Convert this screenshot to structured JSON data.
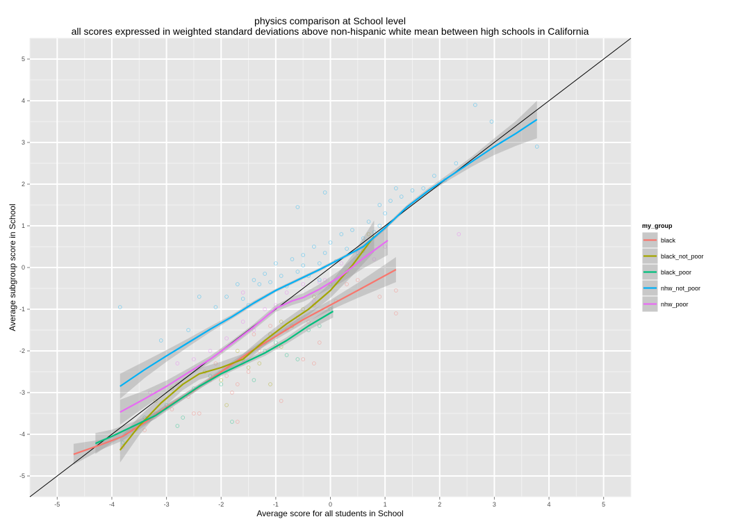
{
  "chart_data": {
    "type": "scatter",
    "title": "physics comparison at School level",
    "subtitle": "all scores expressed in weighted standard deviations above non-hispanic white mean between high schools in California",
    "xlabel": "Average score for all students in School",
    "ylabel": "Average subgroup score in School",
    "xlim": [
      -5.5,
      5.5
    ],
    "ylim": [
      -5.5,
      5.5
    ],
    "x_ticks": [
      -5,
      -4,
      -3,
      -2,
      -1,
      0,
      1,
      2,
      3,
      4,
      5
    ],
    "y_ticks": [
      -5,
      -4,
      -3,
      -2,
      -1,
      0,
      1,
      2,
      3,
      4,
      5
    ],
    "grid": true,
    "reference_line": "y = x",
    "legend": {
      "title": "my_group",
      "position": "right",
      "entries": [
        "black",
        "black_not_poor",
        "black_poor",
        "nhw_not_poor",
        "nhw_poor"
      ]
    },
    "series": [
      {
        "name": "black",
        "color": "#F8766D",
        "fit": {
          "x": [
            -4.7,
            -4.2,
            -3.8,
            -3.4,
            -3.0,
            -2.5,
            -2.0,
            -1.5,
            -1.0,
            -0.5,
            0.0,
            0.5,
            1.2
          ],
          "y": [
            -4.48,
            -4.25,
            -4.05,
            -3.72,
            -3.35,
            -2.95,
            -2.5,
            -2.05,
            -1.65,
            -1.25,
            -0.9,
            -0.55,
            -0.05
          ]
        },
        "band": [
          0.25,
          0.12,
          0.1,
          0.08,
          0.07,
          0.06,
          0.06,
          0.07,
          0.08,
          0.1,
          0.12,
          0.18,
          0.3
        ],
        "points": [
          [
            -3.4,
            -3.9
          ],
          [
            -3.2,
            -3.5
          ],
          [
            -2.9,
            -3.4
          ],
          [
            -2.6,
            -3.1
          ],
          [
            -2.4,
            -3.5
          ],
          [
            -2.2,
            -2.7
          ],
          [
            -2.1,
            -2.3
          ],
          [
            -1.9,
            -2.6
          ],
          [
            -1.8,
            -3.0
          ],
          [
            -1.6,
            -2.3
          ],
          [
            -1.5,
            -2.5
          ],
          [
            -1.4,
            -1.6
          ],
          [
            -1.3,
            -2.0
          ],
          [
            -1.2,
            -1.8
          ],
          [
            -1.1,
            -1.4
          ],
          [
            -1.0,
            -1.9
          ],
          [
            -0.9,
            -3.2
          ],
          [
            -0.8,
            -1.5
          ],
          [
            -0.6,
            -1.2
          ],
          [
            -0.5,
            -2.2
          ],
          [
            -0.4,
            -1.3
          ],
          [
            -0.3,
            -0.9
          ],
          [
            -0.2,
            -1.8
          ],
          [
            0.1,
            -0.8
          ],
          [
            0.3,
            -0.4
          ],
          [
            0.5,
            -0.3
          ],
          [
            0.9,
            -0.7
          ],
          [
            1.2,
            -0.55
          ],
          [
            1.2,
            -1.1
          ],
          [
            -2.8,
            -2.8
          ],
          [
            -2.0,
            -2.0
          ],
          [
            -1.7,
            -2.8
          ],
          [
            -1.7,
            -3.7
          ],
          [
            -0.3,
            -2.3
          ],
          [
            -2.5,
            -3.5
          ],
          [
            -3.8,
            -4.3
          ]
        ]
      },
      {
        "name": "black_not_poor",
        "color": "#A3A500",
        "fit": {
          "x": [
            -3.85,
            -3.5,
            -3.1,
            -2.7,
            -2.4,
            -2.0,
            -1.6,
            -1.2,
            -0.8,
            -0.4,
            0.0,
            0.4,
            0.8
          ],
          "y": [
            -4.38,
            -3.8,
            -3.25,
            -2.8,
            -2.55,
            -2.4,
            -2.2,
            -1.75,
            -1.35,
            -1.0,
            -0.55,
            0.05,
            0.75
          ]
        },
        "band": [
          0.3,
          0.22,
          0.16,
          0.14,
          0.14,
          0.14,
          0.13,
          0.12,
          0.12,
          0.14,
          0.18,
          0.25,
          0.38
        ],
        "points": [
          [
            -3.6,
            -3.9
          ],
          [
            -3.2,
            -3.2
          ],
          [
            -2.9,
            -2.9
          ],
          [
            -2.3,
            -2.5
          ],
          [
            -2.0,
            -2.7
          ],
          [
            -1.7,
            -2.0
          ],
          [
            -1.5,
            -2.4
          ],
          [
            -1.3,
            -2.3
          ],
          [
            -1.1,
            -1.6
          ],
          [
            -0.9,
            -1.3
          ],
          [
            -0.7,
            -1.4
          ],
          [
            -0.5,
            -1.0
          ],
          [
            -0.3,
            -0.7
          ],
          [
            0.0,
            -0.4
          ],
          [
            0.3,
            -0.1
          ],
          [
            0.6,
            0.4
          ],
          [
            0.7,
            0.8
          ],
          [
            -1.9,
            -3.3
          ],
          [
            -1.1,
            -2.8
          ],
          [
            -0.9,
            -1.9
          ]
        ]
      },
      {
        "name": "black_poor",
        "color": "#00BF7D",
        "fit": {
          "x": [
            -4.3,
            -4.0,
            -3.6,
            -3.2,
            -2.8,
            -2.4,
            -2.0,
            -1.6,
            -1.2,
            -0.8,
            -0.4,
            0.05
          ],
          "y": [
            -4.22,
            -4.05,
            -3.8,
            -3.55,
            -3.2,
            -2.85,
            -2.55,
            -2.3,
            -2.05,
            -1.75,
            -1.4,
            -1.05
          ]
        },
        "band": [
          0.25,
          0.16,
          0.1,
          0.08,
          0.07,
          0.06,
          0.06,
          0.06,
          0.07,
          0.08,
          0.1,
          0.15
        ],
        "points": [
          [
            -3.8,
            -4.2
          ],
          [
            -3.4,
            -3.6
          ],
          [
            -3.0,
            -3.3
          ],
          [
            -2.7,
            -3.6
          ],
          [
            -2.5,
            -2.9
          ],
          [
            -2.2,
            -2.6
          ],
          [
            -2.0,
            -2.8
          ],
          [
            -1.8,
            -3.7
          ],
          [
            -1.6,
            -2.2
          ],
          [
            -1.4,
            -2.7
          ],
          [
            -1.2,
            -2.0
          ],
          [
            -1.0,
            -1.8
          ],
          [
            -0.8,
            -2.1
          ],
          [
            -0.6,
            -2.2
          ],
          [
            -0.4,
            -1.5
          ],
          [
            -0.2,
            -1.4
          ],
          [
            0.0,
            -1.0
          ],
          [
            -2.8,
            -3.8
          ]
        ]
      },
      {
        "name": "nhw_not_poor",
        "color": "#00B0F6",
        "fit": {
          "x": [
            -3.85,
            -3.4,
            -3.0,
            -2.6,
            -2.2,
            -1.8,
            -1.4,
            -1.0,
            -0.6,
            -0.2,
            0.2,
            0.6,
            1.0,
            1.4,
            1.8,
            2.2,
            2.6,
            3.0,
            3.4,
            3.78
          ],
          "y": [
            -2.85,
            -2.45,
            -2.12,
            -1.8,
            -1.48,
            -1.18,
            -0.85,
            -0.55,
            -0.3,
            -0.05,
            0.22,
            0.5,
            0.95,
            1.45,
            1.85,
            2.2,
            2.55,
            2.9,
            3.22,
            3.55
          ]
        },
        "band": [
          0.3,
          0.2,
          0.14,
          0.1,
          0.07,
          0.05,
          0.05,
          0.04,
          0.04,
          0.04,
          0.04,
          0.04,
          0.05,
          0.05,
          0.06,
          0.08,
          0.12,
          0.2,
          0.3,
          0.45
        ],
        "points": [
          [
            -3.85,
            -0.95
          ],
          [
            -3.1,
            -1.75
          ],
          [
            -2.6,
            -1.5
          ],
          [
            -2.4,
            -0.7
          ],
          [
            -2.1,
            -0.95
          ],
          [
            -1.9,
            -0.7
          ],
          [
            -1.7,
            -0.4
          ],
          [
            -1.6,
            -0.75
          ],
          [
            -1.5,
            -0.9
          ],
          [
            -1.4,
            -0.3
          ],
          [
            -1.3,
            -0.4
          ],
          [
            -1.2,
            -0.15
          ],
          [
            -1.1,
            -0.35
          ],
          [
            -1.0,
            0.1
          ],
          [
            -0.9,
            -0.2
          ],
          [
            -0.8,
            -0.45
          ],
          [
            -0.7,
            0.2
          ],
          [
            -0.6,
            -0.1
          ],
          [
            -0.5,
            0.3
          ],
          [
            -0.4,
            -0.2
          ],
          [
            -0.3,
            0.5
          ],
          [
            -0.2,
            0.1
          ],
          [
            -0.1,
            0.35
          ],
          [
            0.0,
            0.6
          ],
          [
            0.1,
            0.15
          ],
          [
            0.2,
            0.8
          ],
          [
            0.3,
            0.45
          ],
          [
            0.4,
            0.9
          ],
          [
            0.5,
            0.35
          ],
          [
            0.6,
            0.7
          ],
          [
            0.7,
            1.1
          ],
          [
            0.8,
            0.85
          ],
          [
            0.9,
            1.5
          ],
          [
            1.0,
            1.3
          ],
          [
            1.1,
            1.6
          ],
          [
            1.2,
            1.9
          ],
          [
            1.3,
            1.7
          ],
          [
            1.5,
            1.85
          ],
          [
            1.7,
            1.9
          ],
          [
            1.9,
            2.2
          ],
          [
            2.1,
            2.1
          ],
          [
            2.3,
            2.5
          ],
          [
            2.65,
            3.9
          ],
          [
            2.95,
            3.5
          ],
          [
            3.78,
            2.9
          ],
          [
            -0.6,
            1.45
          ],
          [
            -0.1,
            1.8
          ],
          [
            0.9,
            1.0
          ],
          [
            -0.5,
            0.05
          ],
          [
            -0.2,
            -0.3
          ]
        ]
      },
      {
        "name": "nhw_poor",
        "color": "#E76BF3",
        "fit": {
          "x": [
            -3.85,
            -3.4,
            -3.0,
            -2.6,
            -2.2,
            -1.8,
            -1.4,
            -1.0,
            -0.7,
            -0.5,
            -0.2,
            0.2,
            0.6,
            1.05
          ],
          "y": [
            -3.47,
            -3.15,
            -2.85,
            -2.52,
            -2.2,
            -1.82,
            -1.42,
            -0.98,
            -0.8,
            -0.72,
            -0.52,
            -0.2,
            0.22,
            0.65
          ]
        },
        "band": [
          0.3,
          0.2,
          0.14,
          0.1,
          0.08,
          0.07,
          0.07,
          0.08,
          0.1,
          0.1,
          0.12,
          0.16,
          0.24,
          0.35
        ],
        "points": [
          [
            -3.3,
            -3.0
          ],
          [
            -2.8,
            -2.3
          ],
          [
            -2.5,
            -2.2
          ],
          [
            -2.2,
            -2.0
          ],
          [
            -1.9,
            -1.7
          ],
          [
            -1.6,
            -1.3
          ],
          [
            -1.4,
            -1.5
          ],
          [
            -1.2,
            -1.0
          ],
          [
            -1.0,
            -0.9
          ],
          [
            -0.8,
            -0.6
          ],
          [
            -0.5,
            -0.4
          ],
          [
            -0.3,
            -0.8
          ],
          [
            -0.1,
            -0.3
          ],
          [
            0.2,
            0.1
          ],
          [
            0.5,
            0.4
          ],
          [
            0.8,
            0.2
          ],
          [
            1.0,
            0.5
          ],
          [
            2.35,
            0.8
          ],
          [
            -0.2,
            -0.35
          ],
          [
            -1.6,
            -0.6
          ]
        ]
      }
    ]
  }
}
